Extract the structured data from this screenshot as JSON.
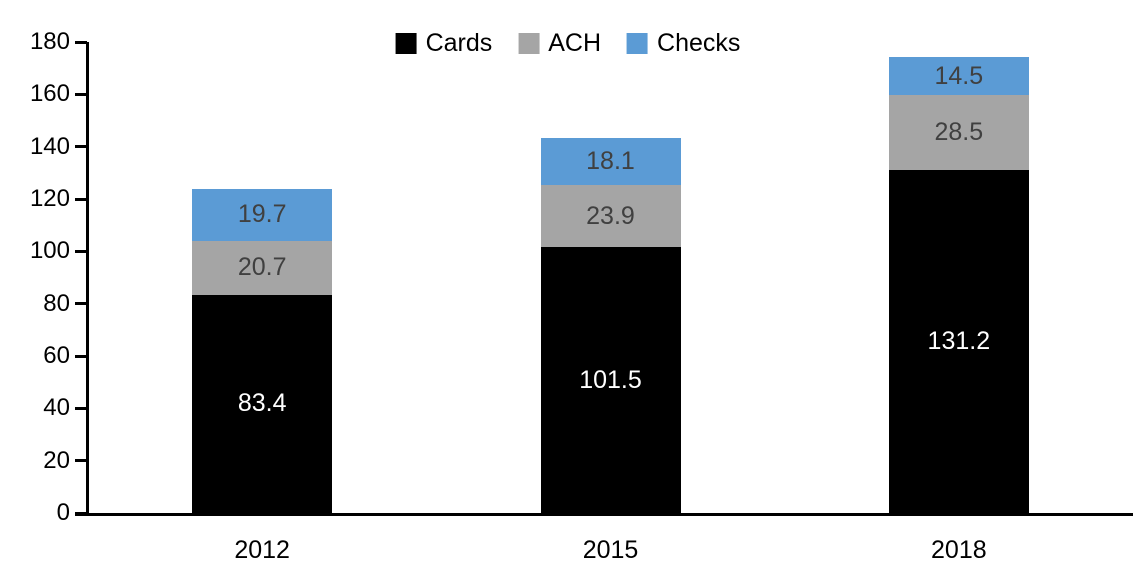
{
  "chart_data": {
    "type": "bar",
    "subtype": "stacked-column",
    "title": "",
    "xlabel": "",
    "ylabel": "",
    "categories": [
      "2012",
      "2015",
      "2018"
    ],
    "series": [
      {
        "name": "Cards",
        "color": "#000000",
        "label_color": "#FFFFFF",
        "values": [
          83.4,
          101.5,
          131.2
        ]
      },
      {
        "name": "ACH",
        "color": "#A5A5A5",
        "label_color": "#404040",
        "values": [
          20.7,
          23.9,
          28.5
        ]
      },
      {
        "name": "Checks",
        "color": "#5B9BD5",
        "label_color": "#404040",
        "values": [
          19.7,
          18.1,
          14.5
        ]
      }
    ],
    "stack_totals": [
      123.8,
      143.5,
      174.2
    ],
    "ylim": [
      0,
      180
    ],
    "ytick_step": 20,
    "ytick_labels": [
      "0",
      "20",
      "40",
      "60",
      "80",
      "100",
      "120",
      "140",
      "160",
      "180"
    ],
    "grid": false,
    "legend_position": "top",
    "axis_color": "#000000"
  }
}
